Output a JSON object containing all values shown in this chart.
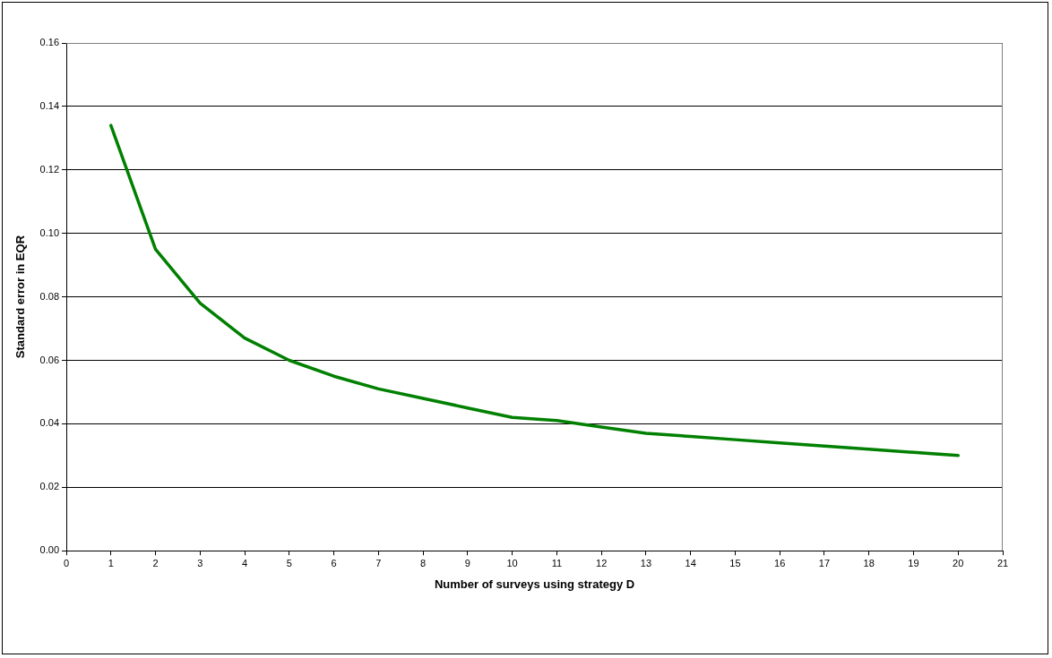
{
  "chart_data": {
    "type": "line",
    "xlabel": "Number of surveys using strategy D",
    "ylabel": "Standard error in EQR",
    "x": [
      1,
      2,
      3,
      4,
      5,
      6,
      7,
      8,
      9,
      10,
      11,
      12,
      13,
      14,
      15,
      16,
      17,
      18,
      19,
      20
    ],
    "series": [
      {
        "color": "#008000",
        "values": [
          0.134,
          0.095,
          0.078,
          0.067,
          0.06,
          0.055,
          0.051,
          0.048,
          0.045,
          0.042,
          0.041,
          0.039,
          0.037,
          0.036,
          0.035,
          0.034,
          0.033,
          0.032,
          0.031,
          0.03
        ]
      }
    ],
    "xlim": [
      0,
      21
    ],
    "xticks": [
      0,
      1,
      2,
      3,
      4,
      5,
      6,
      7,
      8,
      9,
      10,
      11,
      12,
      13,
      14,
      15,
      16,
      17,
      18,
      19,
      20,
      21
    ],
    "ylim": [
      0,
      0.16
    ],
    "yticks": [
      {
        "value": 0,
        "label": "0.00"
      },
      {
        "value": 0.02,
        "label": "0.02"
      },
      {
        "value": 0.04,
        "label": "0.04"
      },
      {
        "value": 0.06,
        "label": "0.06"
      },
      {
        "value": 0.08,
        "label": "0.08"
      },
      {
        "value": 0.1,
        "label": "0.10"
      },
      {
        "value": 0.12,
        "label": "0.12"
      },
      {
        "value": 0.14,
        "label": "0.14"
      },
      {
        "value": 0.16,
        "label": "0.16"
      }
    ],
    "grid": "y",
    "legend": false,
    "marker": "none",
    "line_style": "solid"
  }
}
